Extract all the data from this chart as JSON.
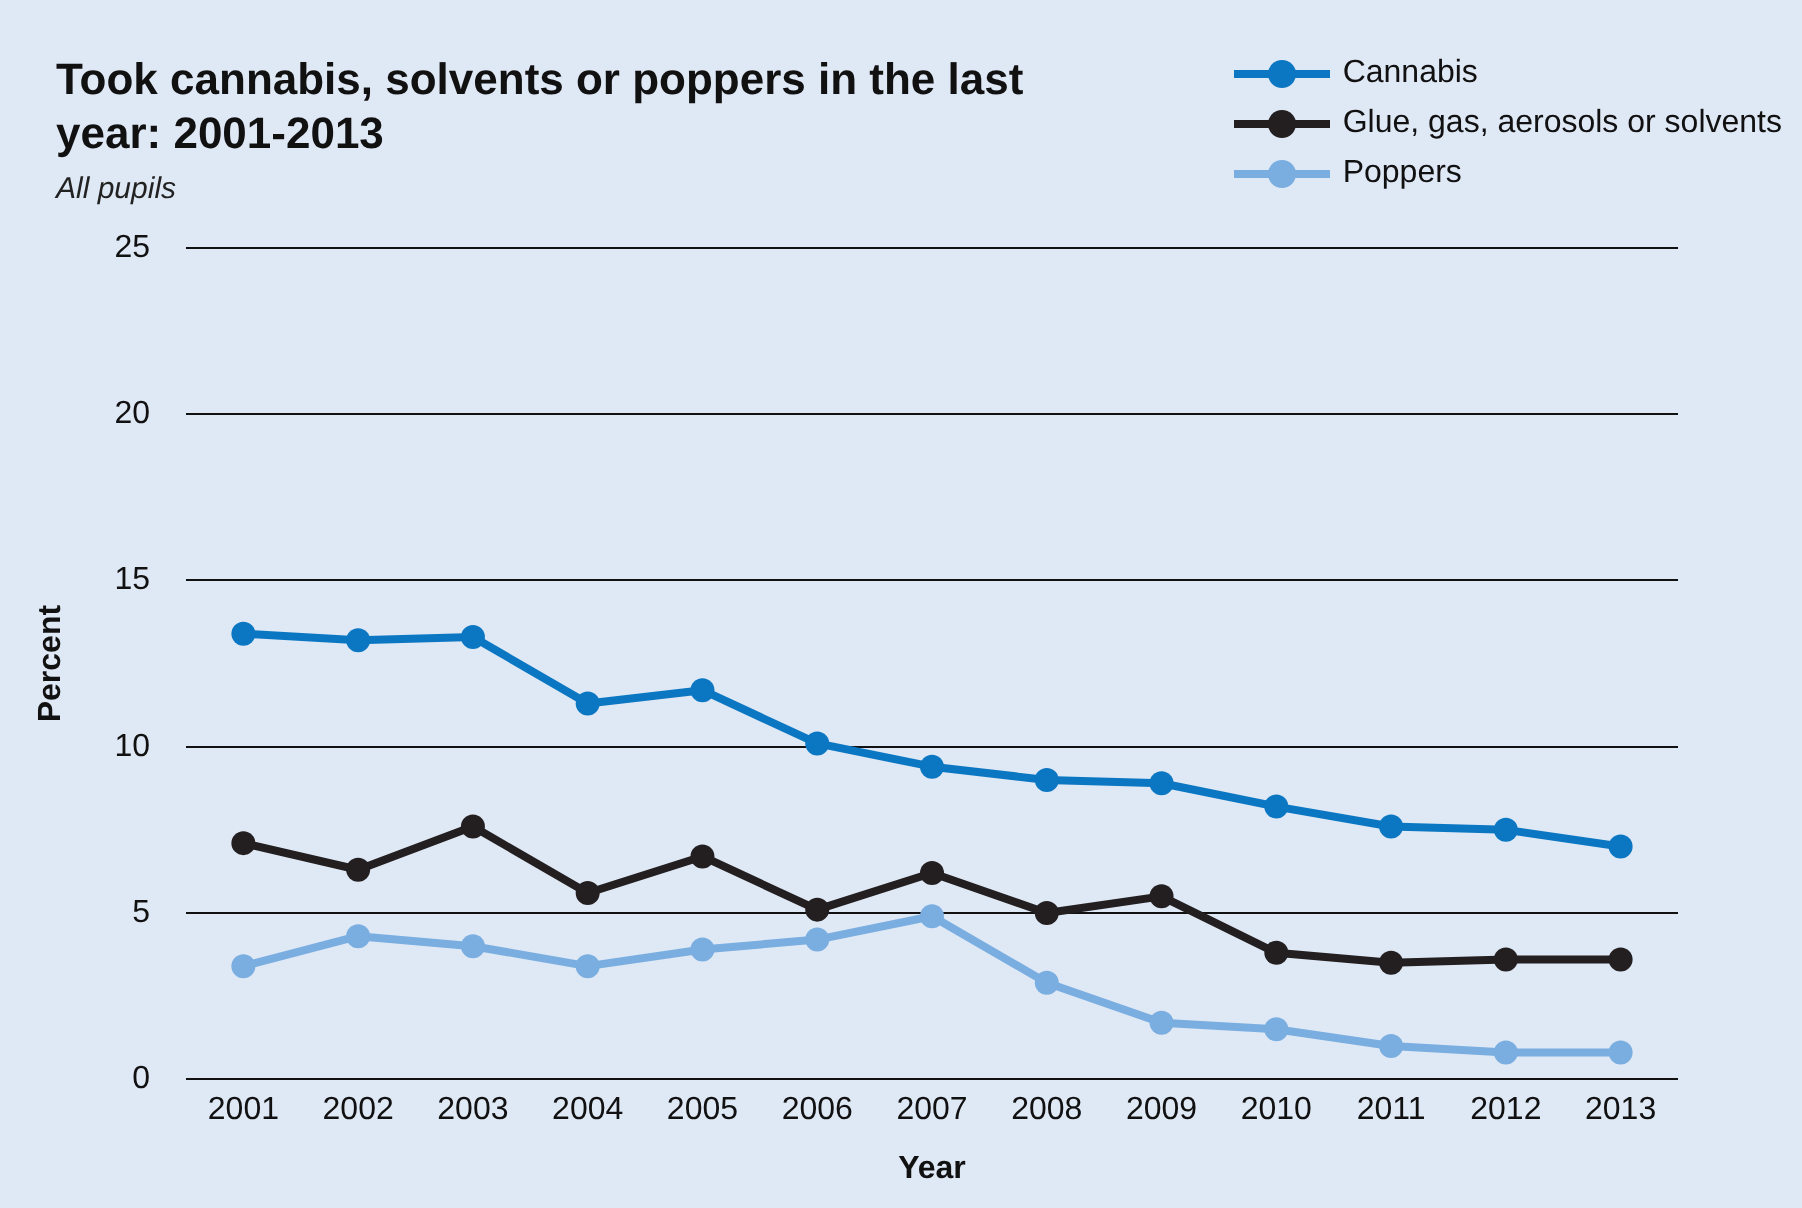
{
  "chart_data": {
    "type": "line",
    "title": "Took cannabis, solvents or poppers in the last year: 2001-2013",
    "subtitle": "All pupils",
    "xlabel": "Year",
    "ylabel": "Percent",
    "categories": [
      "2001",
      "2002",
      "2003",
      "2004",
      "2005",
      "2006",
      "2007",
      "2008",
      "2009",
      "2010",
      "2011",
      "2012",
      "2013"
    ],
    "series": [
      {
        "name": "Cannabis",
        "color": "#0b77c2",
        "values": [
          13.4,
          13.2,
          13.3,
          11.3,
          11.7,
          10.1,
          9.4,
          9.0,
          8.9,
          8.2,
          7.6,
          7.5,
          7.0
        ]
      },
      {
        "name": "Glue, gas, aerosols or solvents",
        "color": "#231f20",
        "values": [
          7.1,
          6.3,
          7.6,
          5.6,
          6.7,
          5.1,
          6.2,
          5.0,
          5.5,
          3.8,
          3.5,
          3.6,
          3.6
        ]
      },
      {
        "name": "Poppers",
        "color": "#7aaee0",
        "values": [
          3.4,
          4.3,
          4.0,
          3.4,
          3.9,
          4.2,
          4.9,
          2.9,
          1.7,
          1.5,
          1.0,
          0.8,
          0.8
        ]
      }
    ],
    "ylim": [
      0,
      25
    ],
    "yticks": [
      0,
      5,
      10,
      15,
      20,
      25
    ],
    "grid": "y",
    "legend": "top right",
    "marker": "circle",
    "line_style": "solid"
  }
}
